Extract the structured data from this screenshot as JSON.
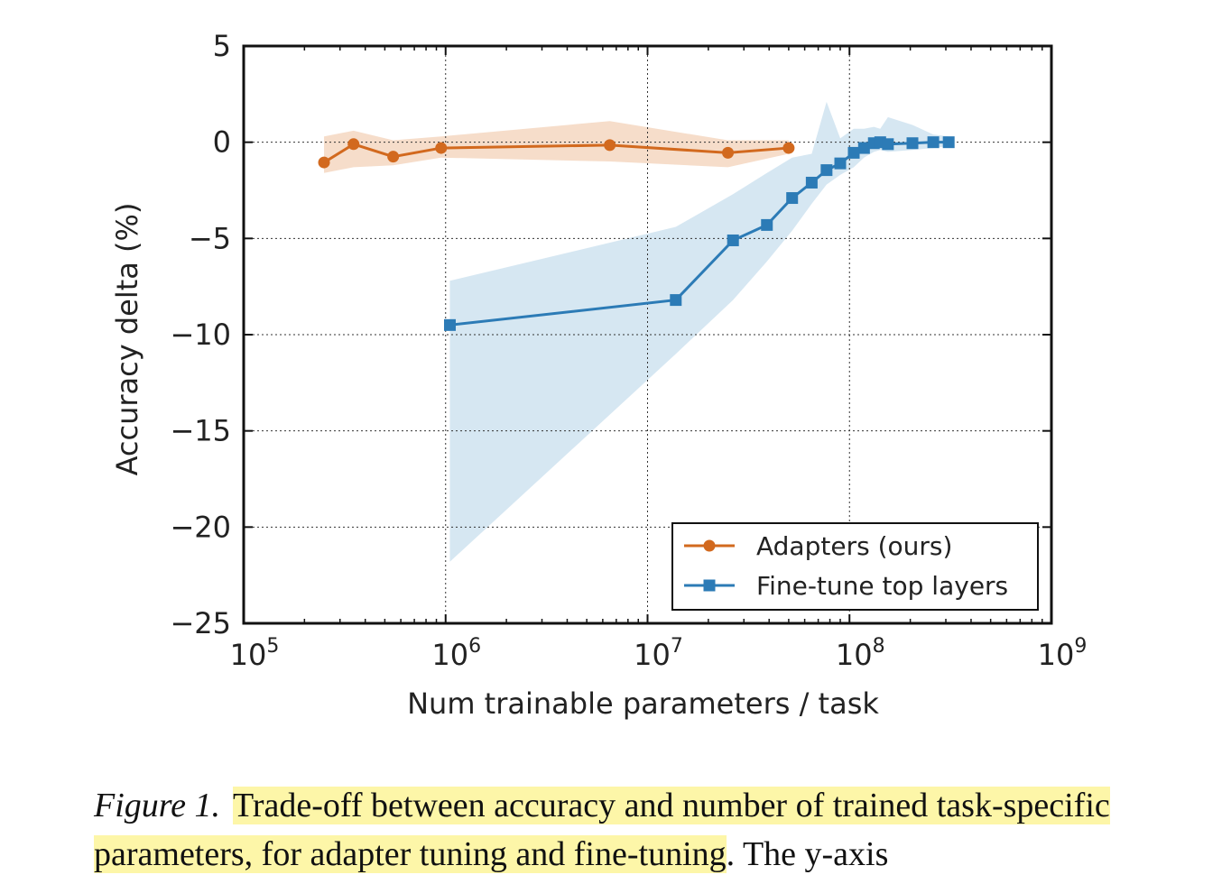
{
  "chart_data": {
    "type": "line",
    "xscale": "log",
    "xlabel": "Num trainable parameters / task",
    "ylabel": "Accuracy delta (%)",
    "xlim": [
      100000,
      1000000000
    ],
    "ylim": [
      -25,
      5
    ],
    "x_ticks": [
      {
        "value": 100000,
        "base": "10",
        "exp": "5"
      },
      {
        "value": 1000000,
        "base": "10",
        "exp": "6"
      },
      {
        "value": 10000000,
        "base": "10",
        "exp": "7"
      },
      {
        "value": 100000000,
        "base": "10",
        "exp": "8"
      },
      {
        "value": 1000000000,
        "base": "10",
        "exp": "9"
      }
    ],
    "y_ticks": [
      {
        "value": 5,
        "label": "5"
      },
      {
        "value": 0,
        "label": "0"
      },
      {
        "value": -5,
        "label": "−5"
      },
      {
        "value": -10,
        "label": "−10"
      },
      {
        "value": -15,
        "label": "−15"
      },
      {
        "value": -20,
        "label": "−20"
      },
      {
        "value": -25,
        "label": "−25"
      }
    ],
    "grid": true,
    "legend_position": "bottom-right",
    "series": [
      {
        "name": "Adapters (ours)",
        "color": "#d2691e",
        "marker": "circle",
        "x": [
          250000,
          350000,
          550000,
          950000,
          6500000,
          25000000,
          50000000
        ],
        "y": [
          -1.05,
          -0.1,
          -0.75,
          -0.3,
          -0.15,
          -0.55,
          -0.3
        ],
        "band_upper": [
          0.3,
          0.6,
          0.1,
          0.3,
          1.1,
          0.1,
          0.1
        ],
        "band_lower": [
          -1.6,
          -1.3,
          -1.2,
          -0.8,
          -1.0,
          -1.3,
          -0.6
        ]
      },
      {
        "name": "Fine-tune top layers",
        "color": "#2c7bb6",
        "marker": "square",
        "x": [
          1050000,
          13800000,
          26500000,
          39000000,
          52000000,
          65000000,
          77000000,
          90000000,
          105000000,
          118000000,
          132000000,
          142000000,
          155000000,
          205000000,
          260000000,
          310000000
        ],
        "y": [
          -9.5,
          -8.2,
          -5.1,
          -4.3,
          -2.9,
          -2.1,
          -1.45,
          -1.1,
          -0.55,
          -0.3,
          -0.05,
          0.0,
          -0.1,
          -0.05,
          0.0,
          0.0
        ],
        "band_upper": [
          -7.2,
          -4.4,
          -2.7,
          -1.6,
          -0.8,
          -0.6,
          2.1,
          0.2,
          0.7,
          0.7,
          0.8,
          0.7,
          1.3,
          0.9,
          0.4,
          0.3
        ],
        "band_lower": [
          -21.8,
          -11.0,
          -8.2,
          -6.2,
          -4.6,
          -3.2,
          -2.2,
          -1.7,
          -1.3,
          -0.8,
          -0.5,
          -0.4,
          -0.5,
          -0.4,
          -0.3,
          -0.2
        ]
      }
    ]
  },
  "caption": {
    "figure_label": "Figure 1.",
    "highlighted_text": "Trade-off between accuracy and number of trained task-specific parameters, for adapter tuning and fine-tuning",
    "trailing_text": ". The y-axis"
  }
}
